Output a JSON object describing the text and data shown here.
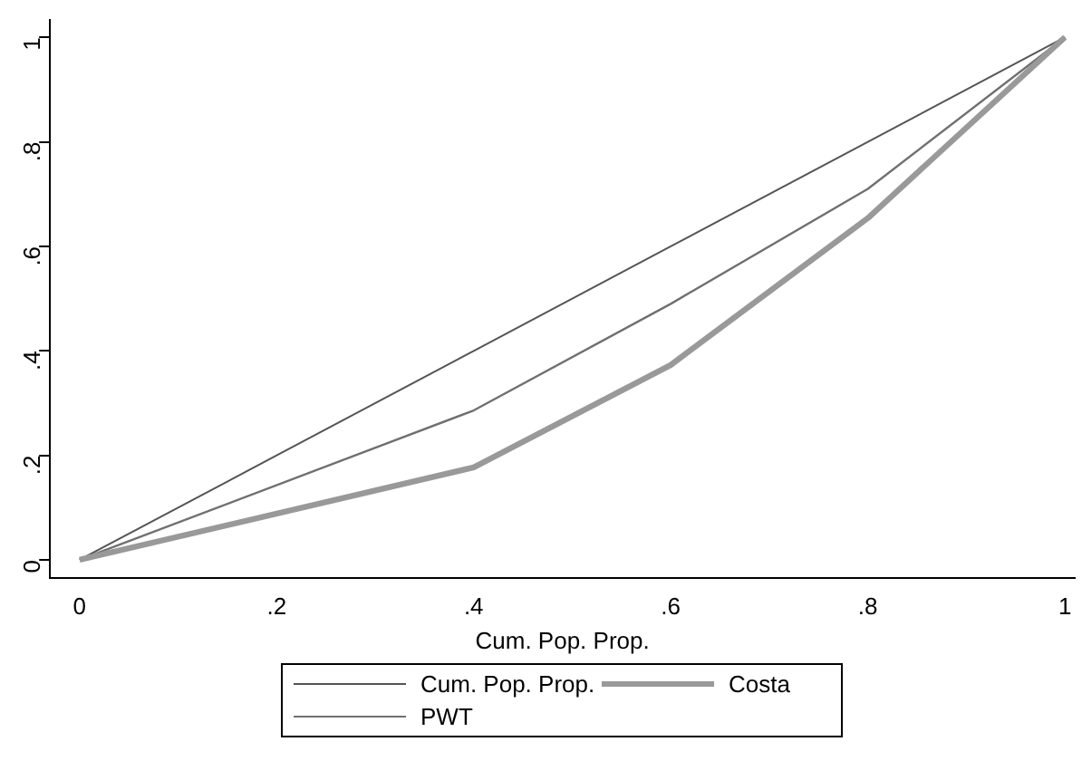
{
  "chart_data": {
    "type": "line",
    "xlabel": "Cum. Pop. Prop.",
    "x": [
      0,
      0.4,
      0.6,
      0.8,
      1
    ],
    "series": [
      {
        "name": "Cum. Pop. Prop.",
        "color": "#555555",
        "values": [
          0,
          0.4,
          0.6,
          0.8,
          1
        ]
      },
      {
        "name": "PWT",
        "color": "#707070",
        "values": [
          0,
          0.286,
          0.49,
          0.71,
          1
        ]
      },
      {
        "name": "Costa",
        "color": "#999999",
        "values": [
          0,
          0.177,
          0.373,
          0.654,
          1
        ]
      }
    ],
    "xlim": [
      -0.03,
      1.01
    ],
    "ylim": [
      -0.034,
      1.034
    ],
    "xticks": [
      0,
      {
        "value": 0.2,
        "label": ".2"
      },
      {
        "value": 0.4,
        "label": ".4"
      },
      {
        "value": 0.6,
        "label": ".6"
      },
      {
        "value": 0.8,
        "label": ".8"
      },
      1
    ],
    "yticks": [
      0,
      {
        "value": 0.2,
        "label": ".2"
      },
      {
        "value": 0.4,
        "label": ".4"
      },
      {
        "value": 0.6,
        "label": ".6"
      },
      {
        "value": 0.8,
        "label": ".8"
      },
      1
    ],
    "grid": false,
    "legend": "bottom",
    "marker": "none",
    "line_style": "solid"
  }
}
